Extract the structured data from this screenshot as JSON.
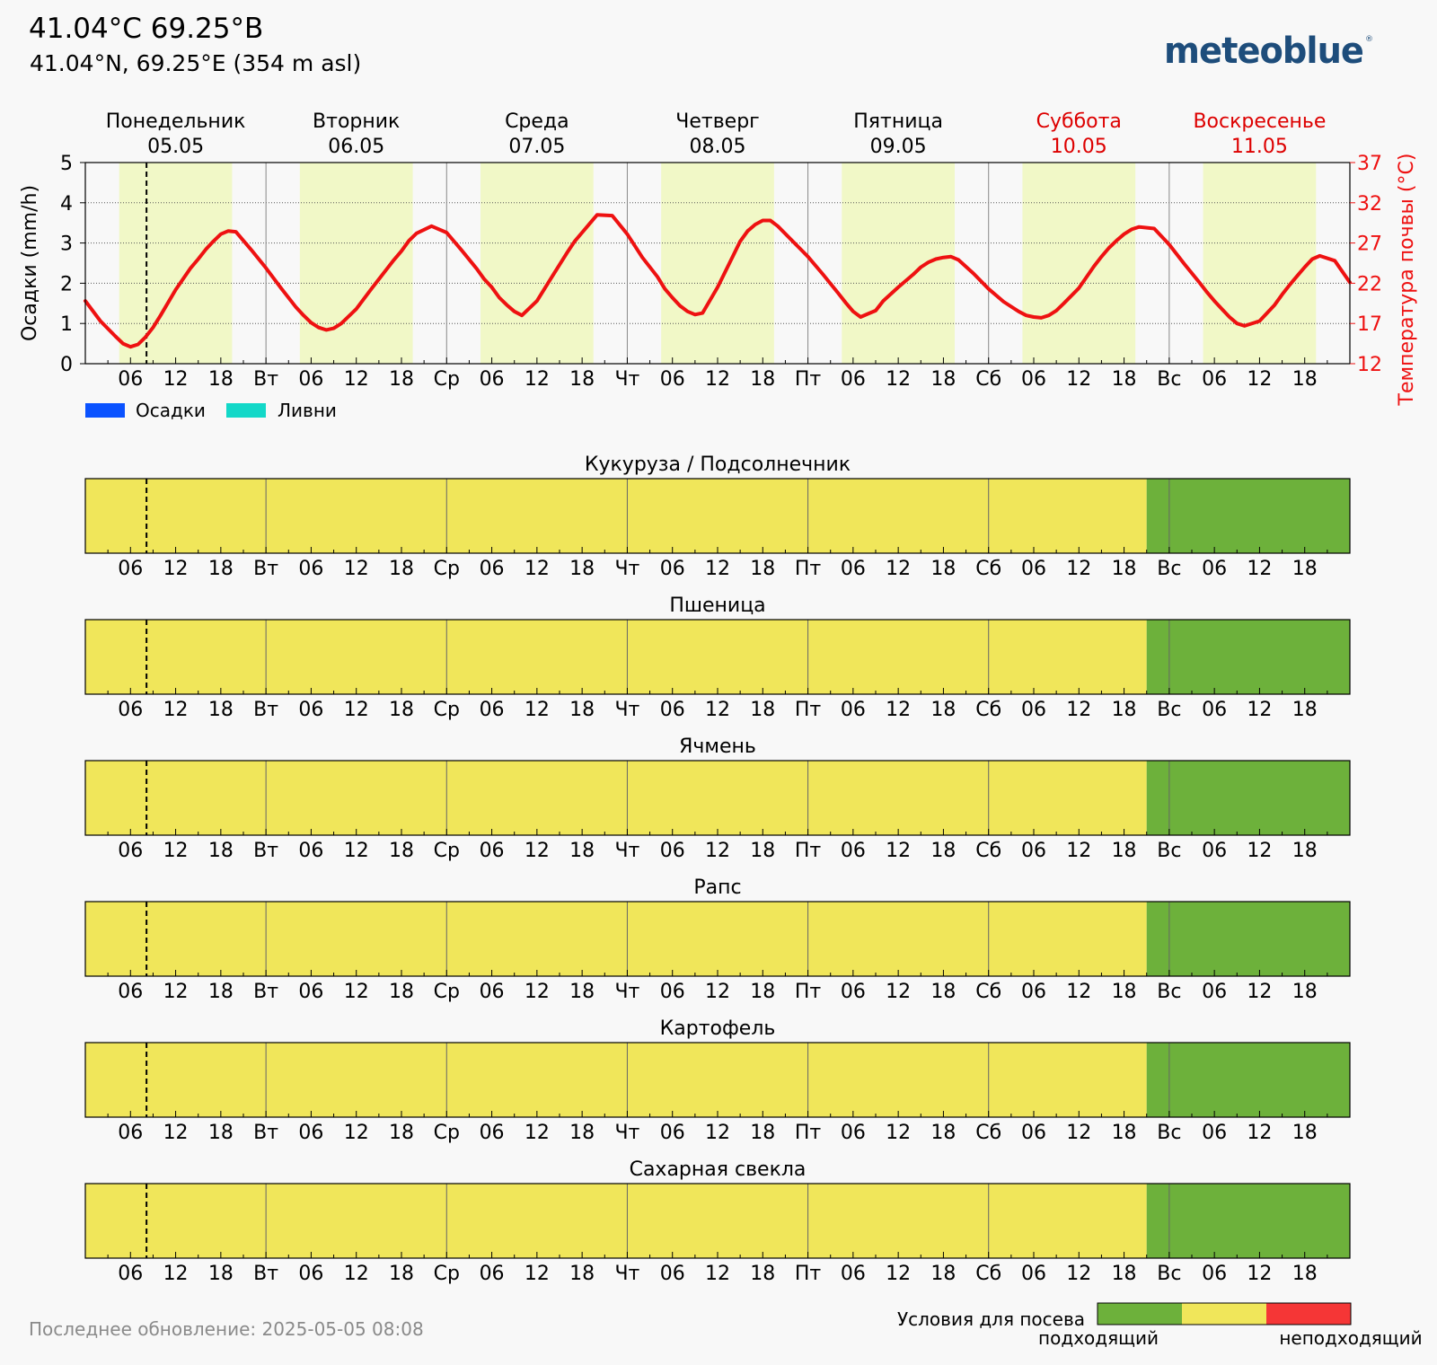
{
  "header": {
    "title": "41.04°C 69.25°B",
    "subtitle": "41.04°N, 69.25°E (354 m asl)",
    "logo_text": "meteoblue",
    "logo_mark": "®"
  },
  "footer": {
    "updated": "Последнее обновление: 2025-05-05 08:08",
    "legend_title": "Условия для посева",
    "legend_good": "подходящий",
    "legend_bad": "неподходящий"
  },
  "colors": {
    "good": "#6db13b",
    "medium": "#f0e65a",
    "bad": "#f53636",
    "temperature": "#ee1111",
    "precipitation": "#0a52ff",
    "showers": "#13d8c8",
    "daylight": "#f1f8c7",
    "weekend": "#dd0000"
  },
  "chart_data": [
    {
      "type": "line",
      "days": [
        {
          "name": "Понедельник",
          "date": "05.05",
          "weekend": false
        },
        {
          "name": "Вторник",
          "date": "06.05",
          "weekend": false
        },
        {
          "name": "Среда",
          "date": "07.05",
          "weekend": false
        },
        {
          "name": "Четверг",
          "date": "08.05",
          "weekend": false
        },
        {
          "name": "Пятница",
          "date": "09.05",
          "weekend": false
        },
        {
          "name": "Суббота",
          "date": "10.05",
          "weekend": true
        },
        {
          "name": "Воскресенье",
          "date": "11.05",
          "weekend": true
        }
      ],
      "xtick_labels": [
        "",
        "06",
        "12",
        "18",
        "Вт",
        "06",
        "12",
        "18",
        "Ср",
        "06",
        "12",
        "18",
        "Чт",
        "06",
        "12",
        "18",
        "Пт",
        "06",
        "12",
        "18",
        "Сб",
        "06",
        "12",
        "18",
        "Вс",
        "06",
        "12",
        "18"
      ],
      "daylight_hours": [
        4.5,
        19.5
      ],
      "current_time_hours": 8.13,
      "ylabel_left": "Осадки (mm/h)",
      "ylim_left": [
        0,
        5
      ],
      "yticks_left": [
        0,
        1,
        2,
        3,
        4,
        5
      ],
      "ylabel_right": "Температура почвы (°C)",
      "ylim_right": [
        12,
        37
      ],
      "yticks_right": [
        12,
        17,
        22,
        27,
        32,
        37
      ],
      "grid": true,
      "legend_position": "bottom-left",
      "legend": [
        "Осадки",
        "Ливни"
      ],
      "series": [
        {
          "name": "Осадки",
          "axis": "left",
          "x_hours": [],
          "values": []
        },
        {
          "name": "Ливни",
          "axis": "left",
          "x_hours": [],
          "values": []
        },
        {
          "axis": "right",
          "x_hours": [
            0,
            2,
            4,
            5,
            6,
            7,
            8,
            9,
            10,
            12,
            14,
            15,
            16,
            17,
            18,
            19,
            20,
            22,
            24,
            26,
            28,
            29,
            30,
            31,
            32,
            33,
            34,
            36,
            38,
            39,
            40,
            41,
            42,
            43,
            44,
            46,
            48,
            50,
            52,
            53,
            54,
            55,
            56,
            57,
            58,
            60,
            62,
            63,
            64,
            65,
            66,
            67,
            68,
            70,
            72,
            74,
            76,
            77,
            78,
            79,
            80,
            81,
            82,
            84,
            86,
            87,
            88,
            89,
            90,
            91,
            92,
            94,
            96,
            98,
            100,
            101,
            102,
            103,
            104,
            105,
            106,
            108,
            110,
            111,
            112,
            113,
            114,
            115,
            116,
            118,
            120,
            122,
            124,
            125,
            126,
            127,
            128,
            129,
            130,
            132,
            134,
            135,
            136,
            137,
            138,
            139,
            140,
            142,
            144,
            146,
            148,
            149,
            150,
            151,
            152,
            153,
            154,
            156,
            158,
            159,
            160,
            161,
            162,
            163,
            164,
            166,
            168
          ],
          "values": [
            19.8,
            17.3,
            15.4,
            14.5,
            14.1,
            14.4,
            15.3,
            16.5,
            18.0,
            21.2,
            23.9,
            25.0,
            26.2,
            27.2,
            28.1,
            28.5,
            28.4,
            26.2,
            23.9,
            21.4,
            19.0,
            18.0,
            17.1,
            16.5,
            16.2,
            16.4,
            17.0,
            18.8,
            21.3,
            22.5,
            23.7,
            24.9,
            26.0,
            27.3,
            28.2,
            29.1,
            28.3,
            26.1,
            23.8,
            22.5,
            21.5,
            20.2,
            19.3,
            18.5,
            18.0,
            19.8,
            22.8,
            24.3,
            25.8,
            27.2,
            28.3,
            29.4,
            30.5,
            30.4,
            28.1,
            25.2,
            22.8,
            21.3,
            20.2,
            19.2,
            18.5,
            18.1,
            18.3,
            21.5,
            25.3,
            27.2,
            28.5,
            29.3,
            29.8,
            29.8,
            29.1,
            27.2,
            25.3,
            23.1,
            20.8,
            19.6,
            18.5,
            17.8,
            18.2,
            18.6,
            19.8,
            21.5,
            23.1,
            24.0,
            24.6,
            25.0,
            25.2,
            25.3,
            24.9,
            23.2,
            21.3,
            19.7,
            18.5,
            18.0,
            17.8,
            17.7,
            18.0,
            18.6,
            19.5,
            21.4,
            24.1,
            25.3,
            26.4,
            27.3,
            28.1,
            28.7,
            29.0,
            28.8,
            26.8,
            24.4,
            22.1,
            20.9,
            19.8,
            18.8,
            17.8,
            17.0,
            16.7,
            17.3,
            19.3,
            20.6,
            21.8,
            22.9,
            24.0,
            25.0,
            25.4,
            24.8,
            22.1
          ]
        }
      ]
    },
    {
      "type": "heatmap",
      "levels": [
        "good",
        "medium",
        "bad"
      ],
      "rows": [
        {
          "title": "Кукуруза / Подсолнечник",
          "segments": [
            {
              "from": 0,
              "to": 141,
              "level": "medium"
            },
            {
              "from": 141,
              "to": 168,
              "level": "good"
            }
          ]
        },
        {
          "title": "Пшеница",
          "segments": [
            {
              "from": 0,
              "to": 141,
              "level": "medium"
            },
            {
              "from": 141,
              "to": 168,
              "level": "good"
            }
          ]
        },
        {
          "title": "Ячмень",
          "segments": [
            {
              "from": 0,
              "to": 141,
              "level": "medium"
            },
            {
              "from": 141,
              "to": 168,
              "level": "good"
            }
          ]
        },
        {
          "title": "Рапс",
          "segments": [
            {
              "from": 0,
              "to": 141,
              "level": "medium"
            },
            {
              "from": 141,
              "to": 168,
              "level": "good"
            }
          ]
        },
        {
          "title": "Картофель",
          "segments": [
            {
              "from": 0,
              "to": 141,
              "level": "medium"
            },
            {
              "from": 141,
              "to": 168,
              "level": "good"
            }
          ]
        },
        {
          "title": "Сахарная свекла",
          "segments": [
            {
              "from": 0,
              "to": 141,
              "level": "medium"
            },
            {
              "from": 141,
              "to": 168,
              "level": "good"
            }
          ]
        }
      ]
    }
  ]
}
